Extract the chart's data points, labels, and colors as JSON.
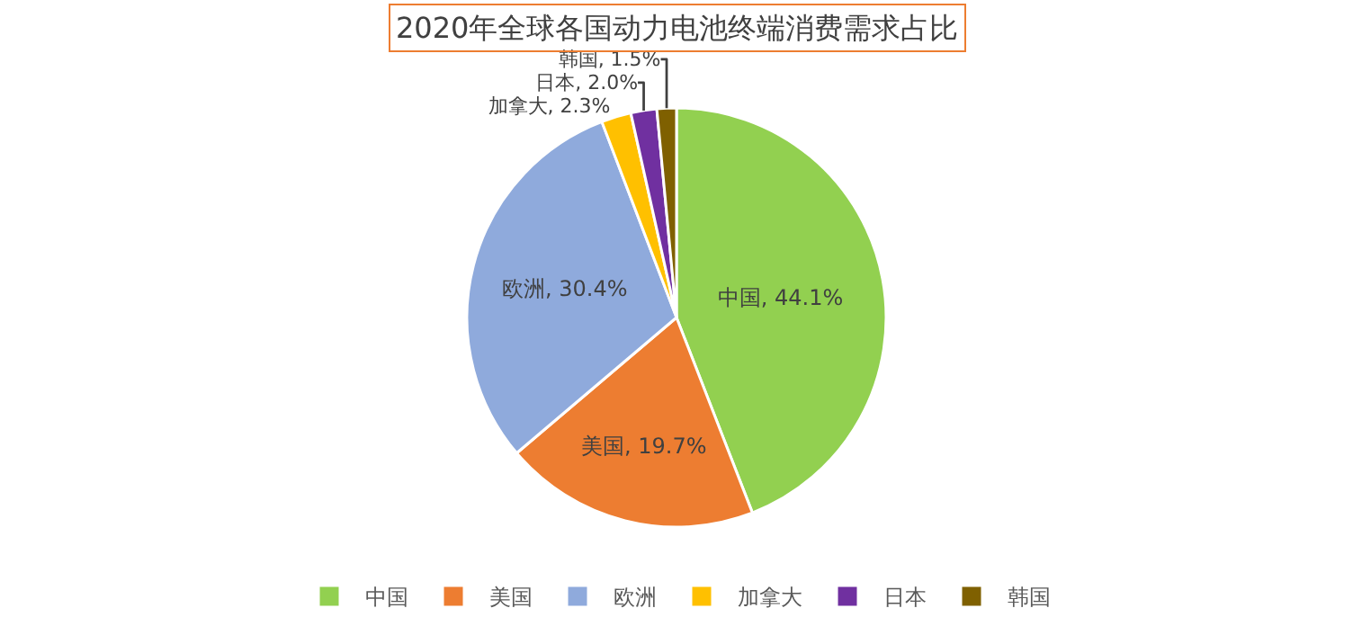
{
  "chart_data": {
    "type": "pie",
    "title": "2020年全球各国动力电池终端消费需求占比",
    "categories": [
      "中国",
      "美国",
      "欧洲",
      "加拿大",
      "日本",
      "韩国"
    ],
    "values": [
      44.1,
      19.7,
      30.4,
      2.3,
      2.0,
      1.5
    ],
    "value_labels": [
      "中国, 44.1%",
      "美国, 19.7%",
      "欧洲, 30.4%",
      "加拿大, 2.3%",
      "日本, 2.0%",
      "韩国, 1.5%"
    ],
    "colors": [
      "#92d050",
      "#ed7d31",
      "#8faadc",
      "#ffc000",
      "#7030a0",
      "#7f6000"
    ],
    "legend": "bottom"
  }
}
